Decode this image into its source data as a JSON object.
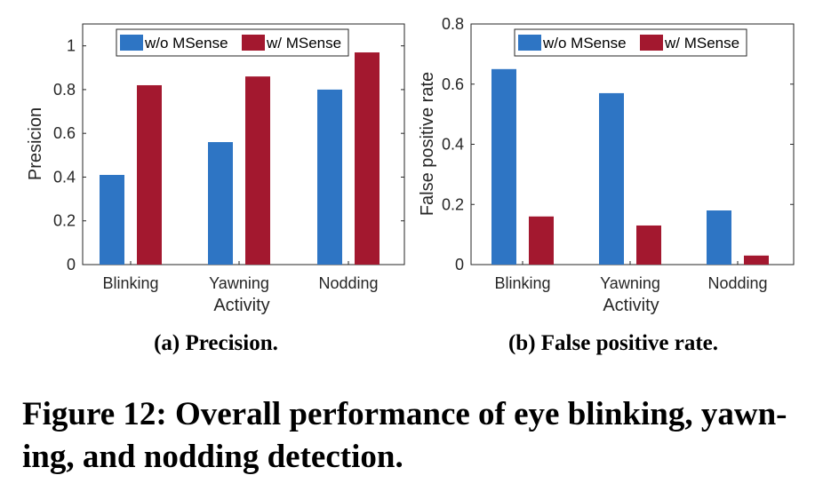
{
  "chart_data": [
    {
      "type": "bar",
      "title": "",
      "subcaption": "(a) Precision.",
      "categories": [
        "Blinking",
        "Yawning",
        "Nodding"
      ],
      "xlabel": "Activity",
      "ylabel": "Presicion",
      "ylim": [
        0,
        1.1
      ],
      "yticks": [
        0,
        0.2,
        0.4,
        0.6,
        0.8,
        1
      ],
      "ytick_labels": [
        "0",
        "0.2",
        "0.4",
        "0.6",
        "0.8",
        "1"
      ],
      "legend_position": "top",
      "series": [
        {
          "name": "w/o MSense",
          "color": "#2e75c4",
          "values": [
            0.41,
            0.56,
            0.8
          ]
        },
        {
          "name": "w/ MSense",
          "color": "#a3182f",
          "values": [
            0.82,
            0.86,
            0.97
          ]
        }
      ]
    },
    {
      "type": "bar",
      "title": "",
      "subcaption": "(b) False positive rate.",
      "categories": [
        "Blinking",
        "Yawning",
        "Nodding"
      ],
      "xlabel": "Activity",
      "ylabel": "False positive rate",
      "ylim": [
        0,
        0.8
      ],
      "yticks": [
        0,
        0.2,
        0.4,
        0.6,
        0.8
      ],
      "ytick_labels": [
        "0",
        "0.2",
        "0.4",
        "0.6",
        "0.8"
      ],
      "legend_position": "top",
      "series": [
        {
          "name": "w/o MSense",
          "color": "#2e75c4",
          "values": [
            0.65,
            0.57,
            0.18
          ]
        },
        {
          "name": "w/ MSense",
          "color": "#a3182f",
          "values": [
            0.16,
            0.13,
            0.03
          ]
        }
      ]
    }
  ],
  "figure_caption": {
    "line1": "Figure 12: Overall performance of eye blinking, yawn-",
    "line2": "ing, and nodding detection."
  }
}
